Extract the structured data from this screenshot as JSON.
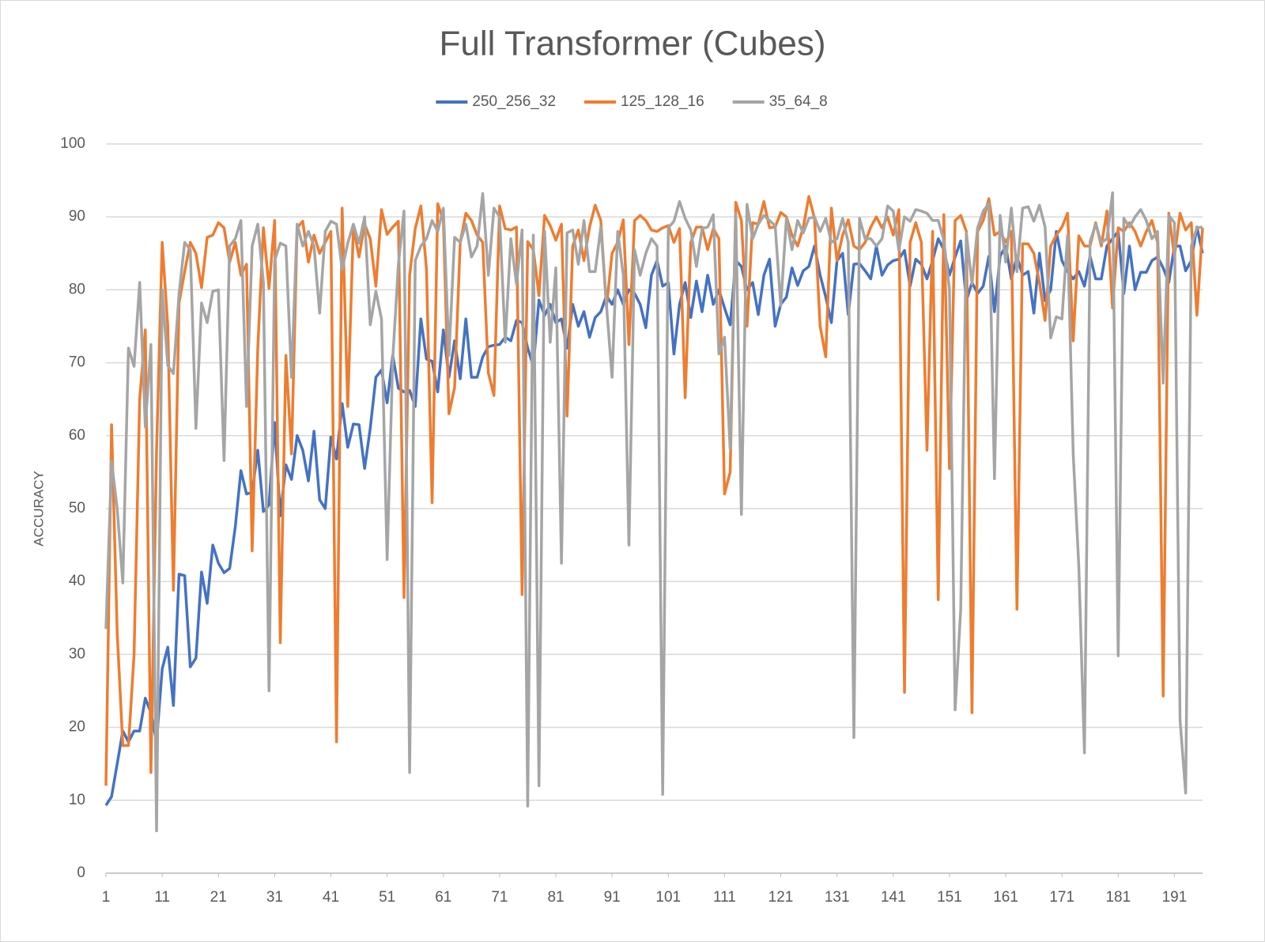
{
  "chart_data": {
    "type": "line",
    "title": "Full Transformer (Cubes)",
    "y_label": "ACCURACY",
    "x": [
      1,
      2,
      3,
      4,
      5,
      6,
      7,
      8,
      9,
      10,
      11,
      12,
      13,
      14,
      15,
      16,
      17,
      18,
      19,
      20,
      21,
      22,
      23,
      24,
      25,
      26,
      27,
      28,
      29,
      30,
      31,
      32,
      33,
      34,
      35,
      36,
      37,
      38,
      39,
      40,
      41,
      42,
      43,
      44,
      45,
      46,
      47,
      48,
      49,
      50,
      51,
      52,
      53,
      54,
      55,
      56,
      57,
      58,
      59,
      60,
      61,
      62,
      63,
      64,
      65,
      66,
      67,
      68,
      69,
      70,
      71,
      72,
      73,
      74,
      75,
      76,
      77,
      78,
      79,
      80,
      81,
      82,
      83,
      84,
      85,
      86,
      87,
      88,
      89,
      90,
      91,
      92,
      93,
      94,
      95,
      96,
      97,
      98,
      99,
      100,
      101,
      102,
      103,
      104,
      105,
      106,
      107,
      108,
      109,
      110,
      111,
      112,
      113,
      114,
      115,
      116,
      117,
      118,
      119,
      120,
      121,
      122,
      123,
      124,
      125,
      126,
      127,
      128,
      129,
      130,
      131,
      132,
      133,
      134,
      135,
      136,
      137,
      138,
      139,
      140,
      141,
      142,
      143,
      144,
      145,
      146,
      147,
      148,
      149,
      150,
      151,
      152,
      153,
      154,
      155,
      156,
      157,
      158,
      159,
      160,
      161,
      162,
      163,
      164,
      165,
      166,
      167,
      168,
      169,
      170,
      171,
      172,
      173,
      174,
      175,
      176,
      177,
      178,
      179,
      180,
      181,
      182,
      183,
      184,
      185,
      186,
      187,
      188,
      189,
      190,
      191,
      192,
      193,
      194,
      195,
      196
    ],
    "xlim": [
      1,
      196
    ],
    "xticks": [
      1,
      11,
      21,
      31,
      41,
      51,
      61,
      71,
      81,
      91,
      101,
      111,
      121,
      131,
      141,
      151,
      161,
      171,
      181,
      191
    ],
    "ylim": [
      0,
      100
    ],
    "yticks": [
      0,
      10,
      20,
      30,
      40,
      50,
      60,
      70,
      80,
      90,
      100
    ],
    "grid": true,
    "legend": "top",
    "series": [
      {
        "name": "250_256_32",
        "color": "#4472c4",
        "values": [
          9.3,
          10.5,
          15,
          19.5,
          18,
          19.5,
          19.5,
          24,
          22,
          18,
          28,
          31,
          23,
          41,
          40.8,
          28.3,
          29.5,
          41.3,
          37,
          45,
          42.5,
          41.2,
          41.8,
          47.5,
          55.2,
          52,
          52.2,
          58,
          49.6,
          50.5,
          61.8,
          49,
          56,
          54,
          60,
          58,
          53.8,
          60.6,
          51.2,
          50,
          59.8,
          56.8,
          64.4,
          58.4,
          61.6,
          61.5,
          55.5,
          61,
          68,
          69,
          64.5,
          71,
          66.5,
          66,
          66.2,
          64,
          76,
          70.5,
          70.2,
          66,
          74.5,
          68,
          73,
          67.8,
          76,
          68,
          68,
          70.8,
          72.2,
          72.4,
          72.5,
          73.5,
          73,
          75.8,
          75.5,
          72,
          69.5,
          78.6,
          76.5,
          78,
          75.5,
          76,
          72,
          78,
          75,
          77,
          73.5,
          76.2,
          77,
          79.2,
          78,
          80,
          78,
          80,
          79.5,
          78,
          74.8,
          82,
          84,
          80.5,
          81,
          71.2,
          78,
          81,
          76.2,
          81.2,
          77,
          82,
          78,
          80,
          77.5,
          75.2,
          84,
          83.2,
          80,
          81,
          76.6,
          82,
          84.2,
          75,
          78,
          79,
          83,
          80.6,
          82.6,
          83.2,
          86,
          82,
          79,
          75.5,
          84,
          85,
          76.6,
          83.5,
          83.6,
          82.6,
          81.5,
          86,
          82,
          83.4,
          84,
          84.2,
          85.4,
          80.5,
          84.2,
          83.5,
          81.5,
          84,
          87,
          85.5,
          82,
          84.5,
          86.7,
          78.5,
          81,
          79.5,
          80.5,
          84.6,
          77,
          84.6,
          86,
          81.5,
          84.6,
          82,
          82.5,
          76.8,
          85,
          78.5,
          80,
          88,
          84,
          82.5,
          81.5,
          82.5,
          80.5,
          84.6,
          81.5,
          81.5,
          86,
          87,
          88,
          79.5,
          86,
          80,
          82.4,
          82.4,
          84,
          84.5,
          83,
          81,
          86,
          86,
          82.6,
          84,
          88.6,
          85
        ]
      },
      {
        "name": "125_128_16",
        "color": "#ed7d31",
        "values": [
          12,
          61.5,
          33,
          17.5,
          17.5,
          30,
          65,
          74.5,
          13.8,
          58,
          86.5,
          75,
          38.8,
          78.2,
          82.5,
          86.5,
          85,
          80.3,
          87.2,
          87.5,
          89.2,
          88.5,
          83.8,
          86.5,
          82,
          83.5,
          44.2,
          72,
          88.5,
          80.2,
          89.5,
          31.6,
          71,
          57.5,
          88.5,
          89.4,
          83.8,
          87.5,
          85,
          86.5,
          88,
          18,
          91.2,
          64,
          88.6,
          84.5,
          89,
          87,
          80.5,
          91,
          87.6,
          88.6,
          89.4,
          37.8,
          82,
          88.4,
          91.5,
          82.8,
          50.8,
          91.8,
          89.5,
          63,
          66.6,
          86.5,
          90.5,
          89.5,
          87.5,
          86.5,
          68.6,
          65.5,
          91.5,
          88.4,
          88.2,
          88.6,
          38.2,
          86.6,
          85.5,
          79.2,
          90.2,
          88.8,
          86.8,
          89,
          62.7,
          86,
          88.2,
          84,
          88.6,
          91.6,
          89.5,
          77.6,
          85,
          86.5,
          89.6,
          72.5,
          89.5,
          90.2,
          89.5,
          88.2,
          88,
          88.5,
          88.8,
          86.5,
          88.4,
          65.2,
          86.5,
          88.6,
          88.6,
          85.5,
          88.4,
          87,
          52,
          55,
          92,
          89.5,
          75,
          89.2,
          89,
          92.1,
          88.5,
          88.6,
          90.6,
          90,
          87.5,
          86,
          88.6,
          92.8,
          89.8,
          75,
          70.8,
          91.2,
          84,
          87.5,
          89.6,
          86,
          85.5,
          86.5,
          88.6,
          90,
          88.5,
          90,
          87.5,
          91,
          24.8,
          86.5,
          89.2,
          86.5,
          58,
          88,
          37.5,
          90.3,
          55.5,
          89.5,
          90.2,
          88,
          22,
          88,
          89.5,
          92.5,
          87.5,
          88,
          86.5,
          88,
          36.2,
          86.3,
          86.3,
          85,
          81,
          75.8,
          86,
          87.5,
          88.6,
          90.5,
          73,
          87.4,
          86,
          86,
          89.2,
          86,
          90.8,
          77.5,
          88.5,
          88,
          89.2,
          88,
          86,
          88,
          89.5,
          86.5,
          24.3,
          90.5,
          84.5,
          90.5,
          88.2,
          89.2,
          76.5,
          88.5
        ]
      },
      {
        "name": "35_64_8",
        "color": "#a5a5a5",
        "values": [
          33.5,
          56.5,
          50,
          39.8,
          72,
          69.5,
          81,
          61.2,
          72.5,
          5.8,
          80,
          69.6,
          68.5,
          79.5,
          86.5,
          85.5,
          61,
          78.2,
          75.5,
          79.8,
          80,
          56.6,
          86,
          87,
          89.5,
          64,
          86,
          89,
          81,
          25,
          84,
          86.4,
          86,
          68,
          89,
          86,
          88,
          86,
          76.8,
          88,
          89.4,
          89,
          82.8,
          86.4,
          89,
          86.4,
          90,
          75.2,
          79.8,
          76,
          43,
          70.5,
          83.5,
          90.8,
          13.8,
          84,
          86,
          87,
          89.5,
          88,
          91.2,
          71,
          87.2,
          86.5,
          89,
          84.5,
          86,
          93.2,
          82,
          91.2,
          90,
          72.8,
          87,
          80.8,
          88.2,
          9.2,
          87.5,
          12,
          88,
          72.8,
          83,
          42.5,
          87.8,
          88.2,
          83.5,
          89.5,
          82.5,
          82.5,
          88.6,
          78,
          68,
          88,
          82,
          45,
          85.5,
          82,
          85,
          87,
          86,
          10.8,
          88.5,
          89.4,
          92.1,
          89.8,
          88.2,
          83.2,
          88.4,
          88.6,
          90.3,
          71.2,
          73.5,
          58.2,
          90.5,
          49.2,
          91.7,
          87,
          89,
          90.2,
          89.5,
          88.8,
          77.8,
          89.8,
          85.5,
          89.5,
          87.8,
          89.8,
          90,
          88,
          89.8,
          86.5,
          87,
          89.8,
          86.5,
          18.6,
          89.8,
          87,
          87,
          86,
          87,
          91.5,
          90.8,
          85.4,
          90,
          89.4,
          91,
          90.8,
          90.5,
          89.5,
          89.5,
          86.8,
          80,
          22.4,
          36.2,
          87.8,
          80.8,
          88.5,
          90.8,
          91.8,
          54.1,
          90.2,
          83.8,
          91.2,
          82.5,
          91.2,
          91.4,
          89.4,
          91.6,
          88.6,
          73.4,
          76.3,
          76,
          87.5,
          57.5,
          42,
          16.5,
          86.6,
          89,
          86.5,
          87,
          93.3,
          29.8,
          89.8,
          88.6,
          90,
          91,
          89.5,
          87,
          88,
          67.2,
          90.2,
          89.2,
          21,
          11,
          86,
          88.5,
          88.6
        ]
      }
    ]
  }
}
